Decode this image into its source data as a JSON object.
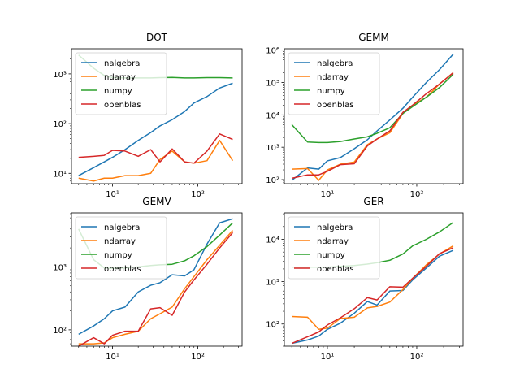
{
  "chart_data": [
    {
      "type": "line",
      "title": "DOT",
      "xscale": "log",
      "yscale": "log",
      "xlim": [
        3.3,
        330
      ],
      "ylim": [
        6.2,
        3200
      ],
      "xticks": [
        10,
        100
      ],
      "yticks": [
        10,
        100,
        1000
      ],
      "x_tick_labels": [
        "10¹",
        "10²"
      ],
      "y_tick_labels": [
        "10¹",
        "10²",
        "10³"
      ],
      "legend_placement": "upper-left",
      "x": [
        4,
        6,
        8,
        10,
        14,
        20,
        28,
        36,
        50,
        70,
        90,
        128,
        180,
        256
      ],
      "series": [
        {
          "name": "nalgebra",
          "color": "#1f77b4",
          "values": [
            9,
            13,
            17,
            21,
            30,
            46,
            66,
            90,
            120,
            175,
            260,
            350,
            520,
            650
          ]
        },
        {
          "name": "ndarray",
          "color": "#ff7f0e",
          "values": [
            8,
            7,
            8,
            8,
            9,
            9,
            10,
            19,
            28,
            17,
            16,
            18,
            46,
            18
          ]
        },
        {
          "name": "numpy",
          "color": "#2ca02c",
          "values": [
            2400,
            1300,
            930,
            840,
            830,
            830,
            830,
            840,
            850,
            830,
            830,
            840,
            840,
            830
          ]
        },
        {
          "name": "openblas",
          "color": "#d62728",
          "values": [
            21,
            22,
            23,
            29,
            28,
            22,
            30,
            17,
            31,
            17,
            16,
            28,
            62,
            48
          ]
        }
      ]
    },
    {
      "type": "line",
      "title": "GEMM",
      "xscale": "log",
      "yscale": "log",
      "xlim": [
        3.3,
        330
      ],
      "ylim": [
        75,
        1100000
      ],
      "xticks": [
        10,
        100
      ],
      "yticks": [
        100,
        1000,
        10000,
        100000,
        1000000
      ],
      "x_tick_labels": [
        "10¹",
        "10²"
      ],
      "y_tick_labels": [
        "10²",
        "10³",
        "10⁴",
        "10⁵",
        "10⁶"
      ],
      "legend_placement": "upper-left",
      "x": [
        4,
        6,
        8,
        10,
        14,
        20,
        28,
        36,
        50,
        70,
        90,
        128,
        180,
        256
      ],
      "series": [
        {
          "name": "nalgebra",
          "color": "#1f77b4",
          "values": [
            95,
            230,
            210,
            380,
            480,
            900,
            1700,
            3200,
            7000,
            16000,
            35000,
            100000,
            250000,
            750000
          ]
        },
        {
          "name": "ndarray",
          "color": "#ff7f0e",
          "values": [
            210,
            220,
            95,
            200,
            300,
            350,
            1200,
            1800,
            2800,
            11000,
            20000,
            35000,
            90000,
            200000
          ]
        },
        {
          "name": "numpy",
          "color": "#2ca02c",
          "values": [
            5000,
            1450,
            1400,
            1400,
            1500,
            1800,
            2100,
            2700,
            4000,
            11000,
            18000,
            35000,
            70000,
            180000
          ]
        },
        {
          "name": "openblas",
          "color": "#d62728",
          "values": [
            110,
            140,
            140,
            180,
            290,
            310,
            1100,
            1800,
            3200,
            12000,
            20000,
            45000,
            90000,
            200000
          ]
        }
      ]
    },
    {
      "type": "line",
      "title": "GEMV",
      "xscale": "log",
      "yscale": "log",
      "xlim": [
        3.3,
        330
      ],
      "ylim": [
        55,
        7200
      ],
      "xticks": [
        10,
        100
      ],
      "yticks": [
        100,
        1000
      ],
      "x_tick_labels": [
        "10¹",
        "10²"
      ],
      "y_tick_labels": [
        "10²",
        "10³"
      ],
      "legend_placement": "upper-left",
      "x": [
        4,
        6,
        8,
        10,
        14,
        20,
        28,
        36,
        50,
        70,
        90,
        128,
        180,
        256
      ],
      "series": [
        {
          "name": "nalgebra",
          "color": "#1f77b4",
          "values": [
            85,
            115,
            150,
            200,
            230,
            400,
            510,
            560,
            750,
            720,
            900,
            2300,
            5000,
            5800
          ]
        },
        {
          "name": "ndarray",
          "color": "#ff7f0e",
          "values": [
            60,
            60,
            62,
            75,
            85,
            95,
            150,
            180,
            230,
            450,
            700,
            1300,
            2200,
            3800
          ]
        },
        {
          "name": "numpy",
          "color": "#2ca02c",
          "values": [
            4000,
            1300,
            960,
            950,
            960,
            1000,
            1050,
            1080,
            1100,
            1250,
            1500,
            2100,
            3200,
            5000
          ]
        },
        {
          "name": "openblas",
          "color": "#d62728",
          "values": [
            55,
            75,
            60,
            82,
            95,
            95,
            215,
            225,
            170,
            400,
            620,
            1100,
            2000,
            3500
          ]
        }
      ]
    },
    {
      "type": "line",
      "title": "GER",
      "xscale": "log",
      "yscale": "log",
      "xlim": [
        3.3,
        330
      ],
      "ylim": [
        30,
        42000
      ],
      "xticks": [
        10,
        100
      ],
      "yticks": [
        100,
        1000,
        10000
      ],
      "x_tick_labels": [
        "10¹",
        "10²"
      ],
      "y_tick_labels": [
        "10²",
        "10³",
        "10⁴"
      ],
      "legend_placement": "upper-left",
      "x": [
        4,
        6,
        8,
        10,
        14,
        20,
        28,
        36,
        50,
        70,
        90,
        128,
        180,
        256
      ],
      "series": [
        {
          "name": "nalgebra",
          "color": "#1f77b4",
          "values": [
            35,
            42,
            52,
            75,
            105,
            180,
            340,
            280,
            600,
            620,
            1100,
            2100,
            4000,
            5500
          ]
        },
        {
          "name": "ndarray",
          "color": "#ff7f0e",
          "values": [
            150,
            145,
            75,
            80,
            135,
            145,
            240,
            260,
            330,
            650,
            1200,
            2500,
            4500,
            7000
          ]
        },
        {
          "name": "numpy",
          "color": "#2ca02c",
          "values": [
            2200,
            2200,
            2200,
            2200,
            2300,
            2400,
            2600,
            2800,
            3200,
            4500,
            7000,
            10000,
            15000,
            25000
          ]
        },
        {
          "name": "openblas",
          "color": "#d62728",
          "values": [
            35,
            50,
            65,
            95,
            140,
            230,
            420,
            370,
            760,
            740,
            1200,
            2300,
            4600,
            6300
          ]
        }
      ]
    }
  ]
}
